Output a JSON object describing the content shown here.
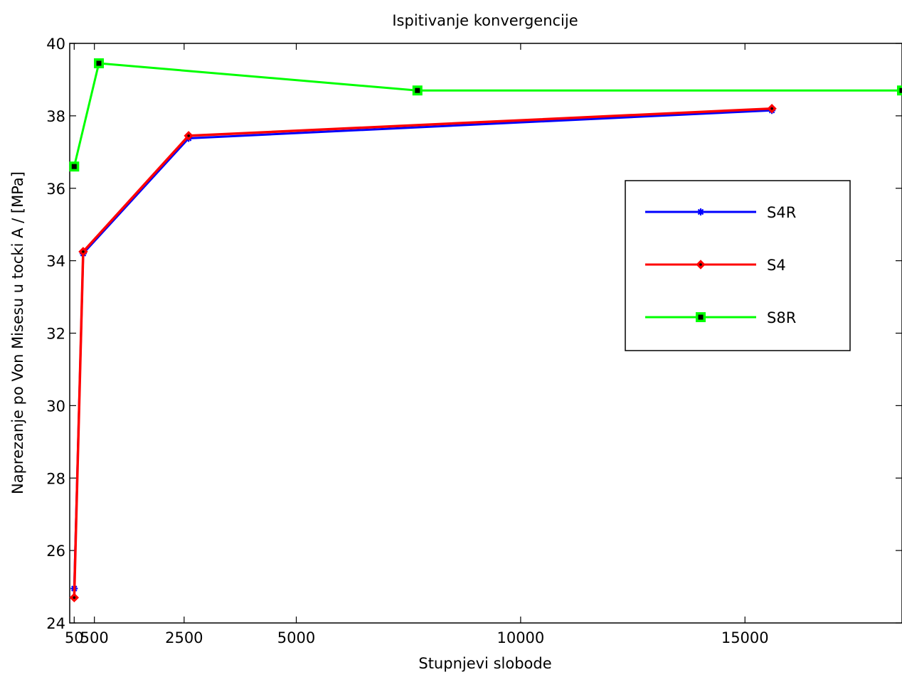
{
  "chart_data": {
    "type": "line",
    "title": "Ispitivanje konvergencije",
    "xlabel": "Stupnjevi slobode",
    "ylabel": "Naprezanje po Von Misesu u tocki A / [MPa]",
    "xlim": [
      -50,
      18500
    ],
    "ylim": [
      24,
      40
    ],
    "xticks": [
      50,
      500,
      2500,
      5000,
      10000,
      15000
    ],
    "xtick_labels": [
      "50",
      "500",
      "2500",
      "5000",
      "10000",
      "15000"
    ],
    "yticks": [
      24,
      26,
      28,
      30,
      32,
      34,
      36,
      38,
      40
    ],
    "ytick_labels": [
      "24",
      "26",
      "28",
      "30",
      "32",
      "34",
      "36",
      "38",
      "40"
    ],
    "legend_position": "right",
    "grid": false,
    "series": [
      {
        "name": "S4R",
        "color": "#0000ff",
        "marker": "asterisk",
        "x": [
          50,
          250,
          2600,
          15600
        ],
        "y": [
          24.95,
          34.2,
          37.38,
          38.15
        ]
      },
      {
        "name": "S4",
        "color": "#ff0000",
        "marker": "diamond",
        "x": [
          50,
          250,
          2600,
          15600
        ],
        "y": [
          24.7,
          34.25,
          37.45,
          38.2
        ]
      },
      {
        "name": "S8R",
        "color": "#00ff00",
        "marker": "square",
        "x": [
          50,
          600,
          7700,
          18500
        ],
        "y": [
          36.6,
          39.45,
          38.7,
          38.7
        ]
      }
    ]
  }
}
